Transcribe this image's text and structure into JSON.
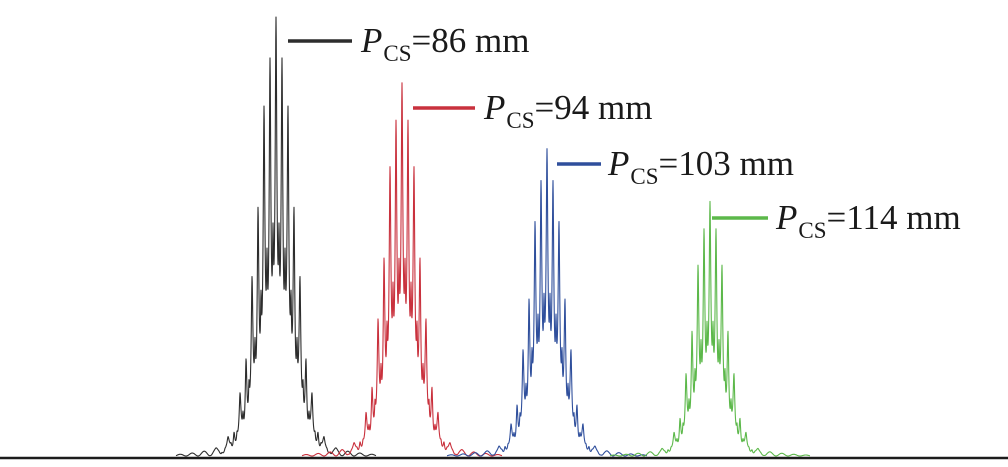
{
  "chart_data": {
    "type": "line",
    "grid": false,
    "ticks": false,
    "legend": "inline",
    "baseline_color": "#1c1c1c",
    "series": [
      {
        "label": {
          "symbol": "P",
          "subscript": "CS",
          "value": "=86 mm"
        },
        "color": "#2d2d2d",
        "relative_peak": 1.0
      },
      {
        "label": {
          "symbol": "P",
          "subscript": "CS",
          "value": "=94 mm"
        },
        "color": "#c9313d",
        "relative_peak": 0.85
      },
      {
        "label": {
          "symbol": "P",
          "subscript": "CS",
          "value": "=103 mm"
        },
        "color": "#2f4f9c",
        "relative_peak": 0.7
      },
      {
        "label": {
          "symbol": "P",
          "subscript": "CS",
          "value": "=114 mm"
        },
        "color": "#5cb84a",
        "relative_peak": 0.58
      }
    ]
  }
}
